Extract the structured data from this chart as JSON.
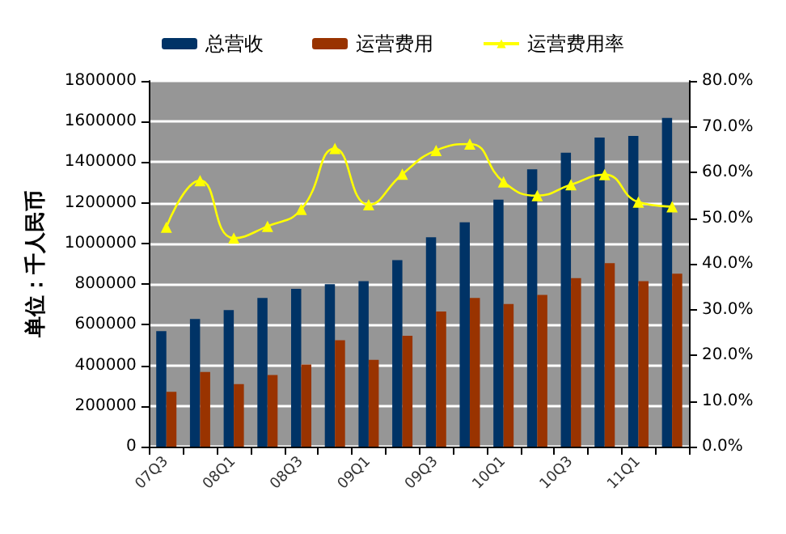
{
  "chart_data": {
    "type": "bar",
    "ylabel": "单位：千人民币",
    "categories": [
      "07Q3",
      null,
      "08Q1",
      null,
      "08Q3",
      null,
      "09Q1",
      null,
      "09Q3",
      null,
      "10Q1",
      null,
      "10Q3",
      null,
      "11Q1",
      null
    ],
    "series": [
      {
        "name": "总营收",
        "color": "#003366",
        "values": [
          568000,
          628000,
          672000,
          732000,
          777000,
          799000,
          814000,
          918000,
          1030000,
          1104000,
          1216000,
          1365000,
          1447000,
          1521000,
          1529000,
          1618000
        ]
      },
      {
        "name": "运营费用",
        "color": "#993300",
        "values": [
          270000,
          367000,
          308000,
          352000,
          404000,
          524000,
          427000,
          546000,
          665000,
          732000,
          702000,
          747000,
          829000,
          903000,
          814000,
          851000
        ]
      },
      {
        "name": "运营费用率",
        "type": "line",
        "axis": "y2",
        "color": "#ffff00",
        "marker": "triangle",
        "values": [
          48.0,
          58.2,
          45.6,
          48.2,
          51.9,
          65.2,
          52.9,
          59.6,
          64.8,
          66.2,
          57.9,
          54.9,
          57.3,
          59.5,
          53.5,
          52.5
        ]
      }
    ],
    "ylim": [
      0,
      1800000
    ],
    "yticks": [
      0,
      200000,
      400000,
      600000,
      800000,
      1000000,
      1200000,
      1400000,
      1600000,
      1800000
    ],
    "y2lim": [
      0,
      80
    ],
    "y2ticks": [
      {
        "value": 0,
        "label": "0.0%"
      },
      {
        "value": 10,
        "label": "10.0%"
      },
      {
        "value": 20,
        "label": "20.0%"
      },
      {
        "value": 30,
        "label": "30.0%"
      },
      {
        "value": 40,
        "label": "40.0%"
      },
      {
        "value": 50,
        "label": "50.0%"
      },
      {
        "value": 60,
        "label": "60.0%"
      },
      {
        "value": 70,
        "label": "70.0%"
      },
      {
        "value": 80,
        "label": "80.0%"
      }
    ],
    "grid": "y",
    "legend": "top"
  }
}
